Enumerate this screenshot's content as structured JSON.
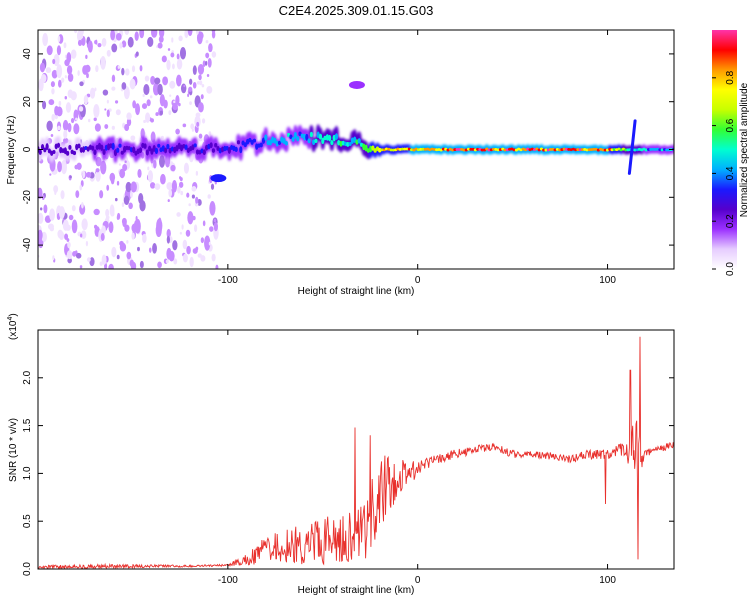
{
  "figure_title": "C2E4.2025.309.01.15.G03",
  "colors": {
    "snr_line": "#e8302c",
    "colormap": [
      "#ffffff",
      "#e6ccff",
      "#9b30ff",
      "#5500cc",
      "#1a1aff",
      "#00b0ff",
      "#00ffd0",
      "#33ff33",
      "#c8ff00",
      "#ffff00",
      "#ff9900",
      "#ff0000",
      "#ff33aa"
    ]
  },
  "chart_data": [
    {
      "type": "heatmap",
      "name": "spectrogram",
      "title": "",
      "xlabel": "Height of straight line (km)",
      "ylabel": "Frequency (Hz)",
      "xlim": [
        -200,
        135
      ],
      "ylim": [
        -50,
        50
      ],
      "xticks": [
        -100,
        0,
        100
      ],
      "xtick_labels": [
        "-100",
        "0",
        "100"
      ],
      "yticks": [
        -40,
        -20,
        0,
        20,
        40
      ],
      "ytick_labels": [
        "-40",
        "-20",
        "0",
        "20",
        "40"
      ],
      "colorbar": {
        "label": "Normalized spectral amplitude",
        "range": [
          0.0,
          1.0
        ],
        "ticks": [
          0.0,
          0.2,
          0.4,
          0.6,
          0.8
        ],
        "tick_labels": [
          "0.0",
          "0.2",
          "0.4",
          "0.6",
          "0.8"
        ]
      },
      "ridge": {
        "description": "dominant frequency track of the signal",
        "x": [
          -200,
          -150,
          -110,
          -90,
          -75,
          -60,
          -45,
          -30,
          -20,
          0,
          20,
          60,
          100,
          110,
          113,
          120,
          135
        ],
        "freq": [
          0,
          0,
          0,
          2,
          4,
          5,
          4,
          2,
          0,
          0,
          0,
          0,
          0,
          0,
          0,
          0,
          0
        ],
        "amplitude": [
          0.25,
          0.3,
          0.3,
          0.35,
          0.4,
          0.45,
          0.5,
          0.55,
          0.75,
          0.85,
          0.9,
          0.95,
          0.85,
          0.6,
          0.5,
          0.45,
          0.45
        ]
      },
      "features": [
        {
          "label": "negative-frequency blob",
          "x": -105,
          "freq": -12,
          "amplitude": 0.3
        },
        {
          "label": "high-frequency trace",
          "x": -32,
          "freq": 27,
          "amplitude": 0.15
        },
        {
          "label": "spike near 113 km",
          "x": 113,
          "freq_range": [
            -10,
            12
          ],
          "amplitude": 0.35
        }
      ]
    },
    {
      "type": "line",
      "name": "snr",
      "title": "",
      "xlabel": "Height of straight line (km)",
      "ylabel": "SNR (10 * v/v)",
      "y_scale_label": "(x10",
      "y_scale_exp": "4",
      "y_scale_close": ")",
      "xlim": [
        -200,
        135
      ],
      "ylim": [
        0,
        2.5
      ],
      "xticks": [
        -100,
        0,
        100
      ],
      "xtick_labels": [
        "-100",
        "0",
        "100"
      ],
      "yticks": [
        0.0,
        0.5,
        1.0,
        1.5,
        2.0
      ],
      "ytick_labels": [
        "0.0",
        "0.5",
        "1.0",
        "1.5",
        "2.0"
      ],
      "series": [
        {
          "name": "SNR",
          "envelope": {
            "x": [
              -200,
              -160,
              -120,
              -100,
              -90,
              -80,
              -70,
              -60,
              -50,
              -40,
              -30,
              -25,
              -20,
              -10,
              0,
              10,
              20,
              30,
              40,
              50,
              60,
              70,
              80,
              90,
              100,
              110,
              115,
              120,
              135
            ],
            "mean": [
              0.02,
              0.03,
              0.03,
              0.04,
              0.1,
              0.2,
              0.25,
              0.3,
              0.3,
              0.3,
              0.35,
              0.6,
              0.8,
              0.95,
              1.05,
              1.15,
              1.2,
              1.25,
              1.28,
              1.2,
              1.2,
              1.18,
              1.15,
              1.2,
              1.2,
              1.25,
              1.2,
              1.22,
              1.3
            ],
            "spread": [
              0.02,
              0.02,
              0.01,
              0.01,
              0.06,
              0.15,
              0.2,
              0.25,
              0.25,
              0.25,
              0.3,
              0.45,
              0.4,
              0.2,
              0.08,
              0.05,
              0.05,
              0.04,
              0.04,
              0.04,
              0.04,
              0.04,
              0.04,
              0.05,
              0.05,
              0.1,
              0.4,
              0.05,
              0.03
            ]
          },
          "spikes": [
            {
              "x": -33,
              "y": 1.48
            },
            {
              "x": -25,
              "y": 1.4
            },
            {
              "x": 99,
              "y": 0.68
            },
            {
              "x": 112,
              "y": 2.08
            },
            {
              "x": 116,
              "y": 0.1
            },
            {
              "x": 117,
              "y": 2.43
            }
          ]
        }
      ]
    }
  ]
}
